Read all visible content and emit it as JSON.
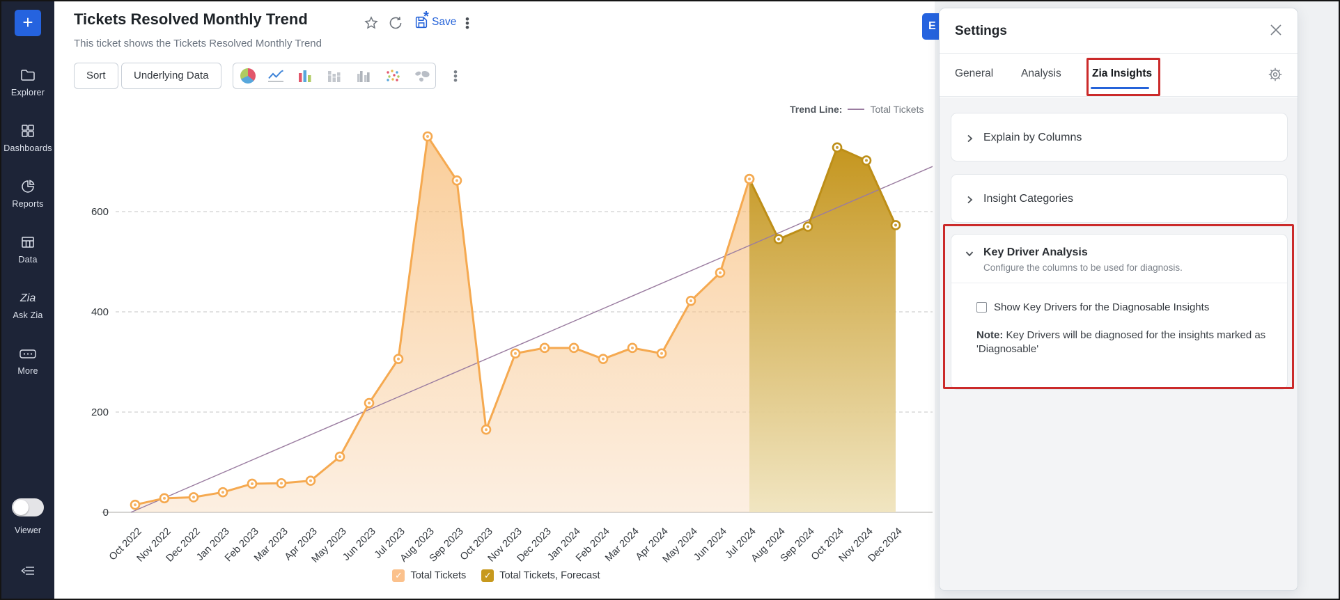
{
  "sidebar": {
    "plus_label": "+",
    "items": [
      {
        "icon": "folder",
        "label": "Explorer"
      },
      {
        "icon": "grid",
        "label": "Dashboards"
      },
      {
        "icon": "pie",
        "label": "Reports"
      },
      {
        "icon": "table",
        "label": "Data"
      },
      {
        "icon": "zia",
        "label": "Ask Zia"
      },
      {
        "icon": "more",
        "label": "More"
      }
    ],
    "viewer_toggle": {
      "label": "Viewer",
      "state": "off"
    }
  },
  "header": {
    "title": "Tickets Resolved Monthly Trend",
    "subtitle": "This ticket shows the Tickets Resolved Monthly Trend",
    "save_label": "Save",
    "save_dirty_marker": "*"
  },
  "toolbar": {
    "sort_label": "Sort",
    "underlying_label": "Underlying Data",
    "chart_type_icons": [
      "pie-chart",
      "line-chart",
      "bar-chart",
      "stacked-bar",
      "grouped-bar",
      "scatter",
      "map"
    ]
  },
  "export_button": {
    "label": "E"
  },
  "settings_panel": {
    "title": "Settings",
    "tabs": [
      {
        "label": "General",
        "active": false
      },
      {
        "label": "Analysis",
        "active": false
      },
      {
        "label": "Zia Insights",
        "active": true
      }
    ],
    "sections": [
      {
        "label": "Explain by Columns",
        "expanded": false
      },
      {
        "label": "Insight Categories",
        "expanded": false
      },
      {
        "label": "Key Driver Analysis",
        "expanded": true,
        "description": "Configure the columns to be used for diagnosis.",
        "checkbox_label": "Show Key Drivers for the Diagnosable Insights",
        "checkbox_checked": false,
        "note_prefix": "Note:",
        "note_text": " Key Drivers will be diagnosed for the insights marked as 'Diagnosable'"
      }
    ]
  },
  "chart_data": {
    "type": "area",
    "title": "Tickets Resolved Monthly Trend",
    "x": [
      "Oct 2022",
      "Nov 2022",
      "Dec 2022",
      "Jan 2023",
      "Feb 2023",
      "Mar 2023",
      "Apr 2023",
      "May 2023",
      "Jun 2023",
      "Jul 2023",
      "Aug 2023",
      "Sep 2023",
      "Oct 2023",
      "Nov 2023",
      "Dec 2023",
      "Jan 2024",
      "Feb 2024",
      "Mar 2024",
      "Apr 2024",
      "May 2024",
      "Jun 2024",
      "Jul 2024",
      "Aug 2024",
      "Sep 2024",
      "Oct 2024",
      "Nov 2024",
      "Dec 2024"
    ],
    "series": [
      {
        "name": "Total Tickets",
        "color": "#F5A950",
        "values": [
          15,
          28,
          30,
          40,
          57,
          58,
          63,
          111,
          218,
          306,
          750,
          662,
          165,
          317,
          328,
          328,
          306,
          328,
          317,
          422,
          478,
          665,
          null,
          null,
          null,
          null,
          null
        ]
      },
      {
        "name": "Total Tickets, Forecast",
        "color": "#BD8E17",
        "values": [
          null,
          null,
          null,
          null,
          null,
          null,
          null,
          null,
          null,
          null,
          null,
          null,
          null,
          null,
          null,
          null,
          null,
          null,
          null,
          null,
          null,
          665,
          545,
          570,
          728,
          702,
          573
        ]
      }
    ],
    "trend_line": {
      "legend_caption": "Trend Line:",
      "label": "Total Tickets",
      "color": "#9A7CA0",
      "start_value": 0,
      "end_value_at_right_edge": 690
    },
    "ylim": [
      0,
      800
    ],
    "yticks": [
      0,
      200,
      400,
      600
    ],
    "grid": true,
    "legend_position": "bottom",
    "legend": [
      {
        "label": "Total Tickets",
        "swatch_color": "#FBC18C",
        "check": "✓"
      },
      {
        "label": "Total Tickets, Forecast",
        "swatch_color": "#C7991D",
        "check": "✓"
      }
    ]
  }
}
